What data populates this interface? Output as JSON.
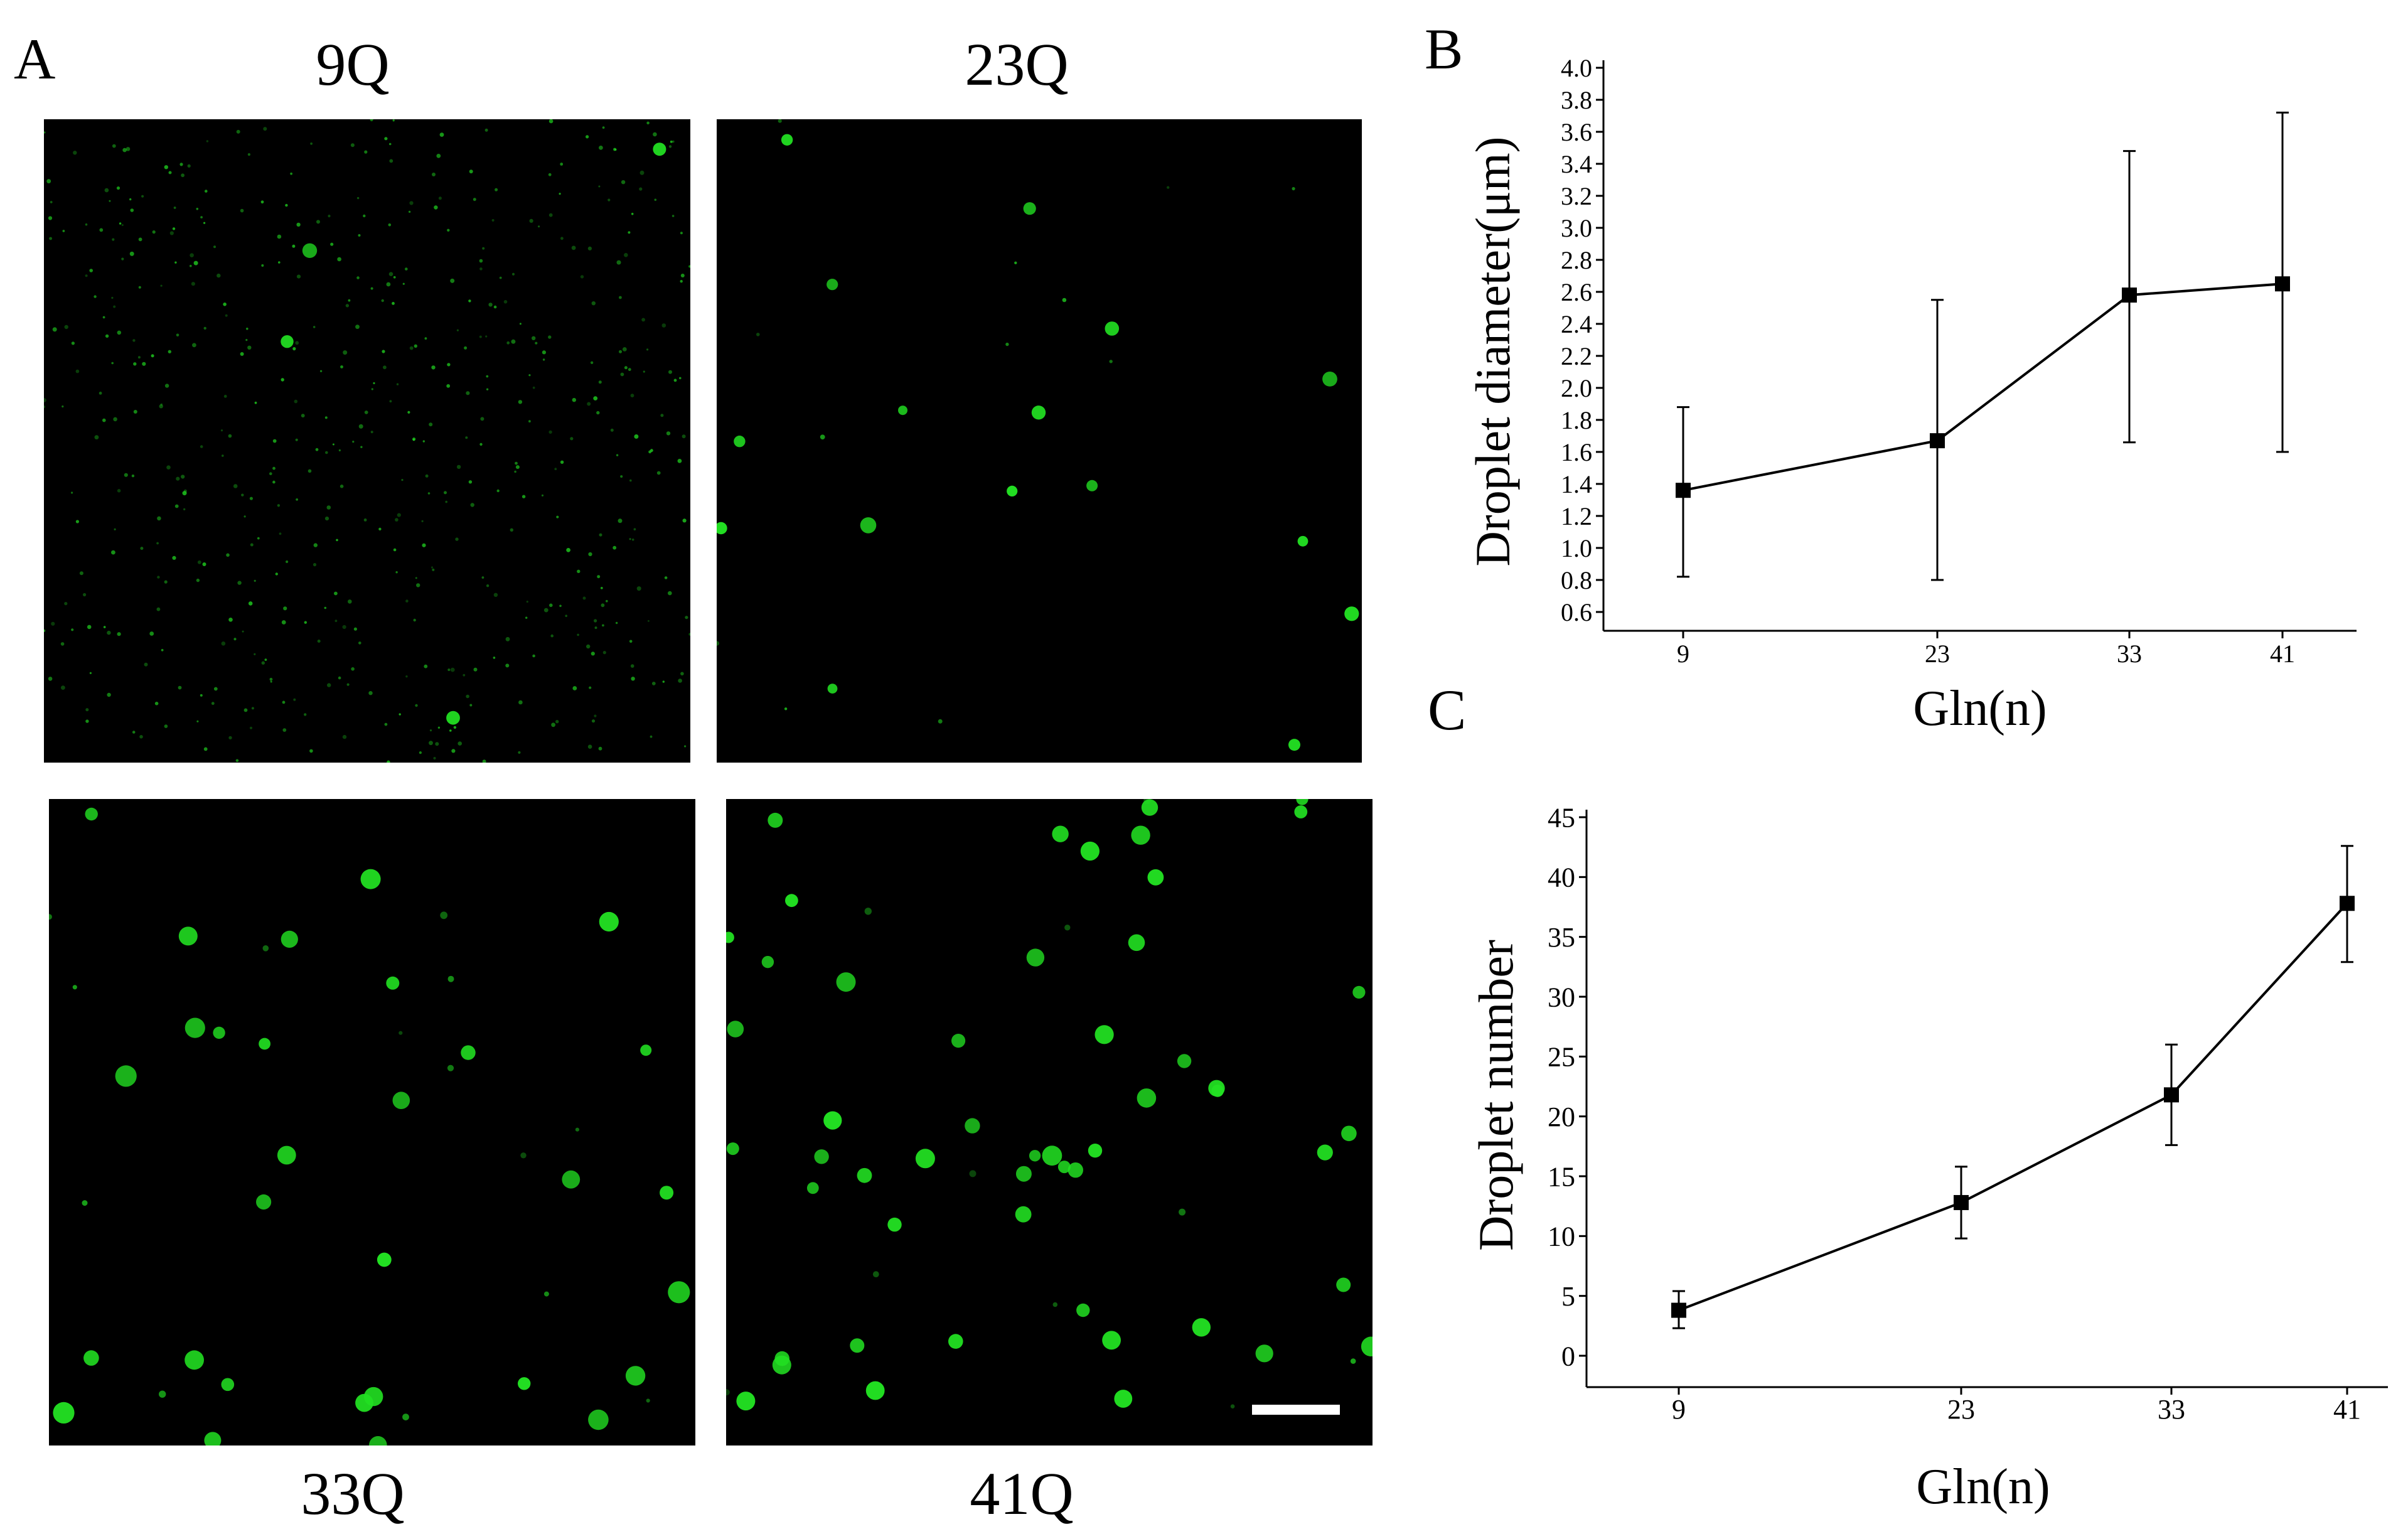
{
  "figure": {
    "panel_a_letter": "A",
    "panel_b_letter": "B",
    "panel_c_letter": "C",
    "micrographs": [
      {
        "label": "9Q"
      },
      {
        "label": "23Q"
      },
      {
        "label": "33Q"
      },
      {
        "label": "41Q"
      }
    ],
    "colors": {
      "fluorescence": "#22e022",
      "background": "#000000",
      "scale_bar": "#ffffff"
    }
  },
  "chart_data": [
    {
      "panel": "B",
      "type": "line",
      "title": "",
      "xlabel": "Gln(n)",
      "ylabel": "Droplet diameter(μm)",
      "x": [
        9,
        23,
        33,
        41
      ],
      "x_tick_labels": [
        "9",
        "23",
        "33",
        "41"
      ],
      "series": [
        {
          "values": [
            1.36,
            1.67,
            2.58,
            2.65
          ],
          "err_low": [
            0.82,
            0.8,
            1.66,
            1.6
          ],
          "err_high": [
            1.88,
            2.55,
            3.48,
            3.72
          ]
        }
      ],
      "ylim": [
        0.6,
        4.0
      ],
      "y_tick_labels": [
        "0.6",
        "0.8",
        "1.0",
        "1.2",
        "1.4",
        "1.6",
        "1.8",
        "2.0",
        "2.2",
        "2.4",
        "2.6",
        "2.8",
        "3.0",
        "3.2",
        "3.4",
        "3.6",
        "3.8",
        "4.0"
      ],
      "marker": "square",
      "grid": false
    },
    {
      "panel": "C",
      "type": "line",
      "title": "",
      "xlabel": "Gln(n)",
      "ylabel": "Droplet number",
      "x": [
        9,
        23,
        33,
        41
      ],
      "x_tick_labels": [
        "9",
        "23",
        "33",
        "41"
      ],
      "series": [
        {
          "values": [
            3.8,
            12.8,
            21.8,
            37.8
          ],
          "err_low": [
            2.3,
            9.8,
            17.6,
            32.9
          ],
          "err_high": [
            5.4,
            15.8,
            26.0,
            42.6
          ]
        }
      ],
      "ylim": [
        0,
        45
      ],
      "y_tick_labels": [
        "0",
        "5",
        "10",
        "15",
        "20",
        "25",
        "30",
        "35",
        "40",
        "45"
      ],
      "marker": "square",
      "grid": false
    }
  ]
}
